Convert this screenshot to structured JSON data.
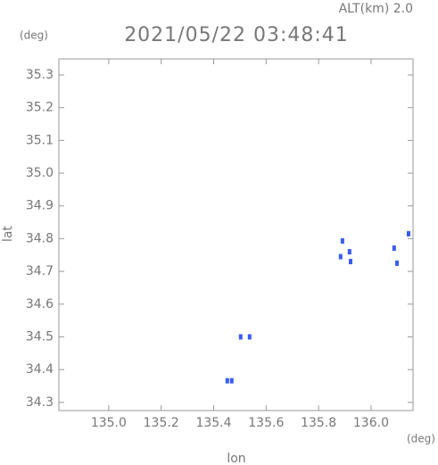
{
  "chart_data": {
    "type": "scatter",
    "title": "2021/05/22 03:48:41",
    "subtitle": "ALT(km) 2.0",
    "y_unit": "(deg)",
    "x_unit": "(deg)",
    "x_label": "lon",
    "y_label": "lat",
    "color": "#3a5cf0",
    "xlim": [
      134.81,
      136.16
    ],
    "ylim": [
      34.275,
      35.349
    ],
    "xticks": [
      {
        "value": 135.0,
        "label": "135.0"
      },
      135.2,
      135.4,
      135.6,
      135.8,
      {
        "value": 136.0,
        "label": "136.0"
      }
    ],
    "yticks": [
      34.3,
      34.4,
      34.5,
      34.6,
      34.7,
      34.8,
      34.9,
      {
        "value": 35.0,
        "label": "35.0"
      },
      35.1,
      35.2,
      35.3
    ],
    "x": [
      136.143,
      136.099,
      136.088,
      135.918,
      135.891,
      135.922,
      135.884,
      135.503,
      135.537,
      135.452,
      135.469
    ],
    "values": [
      34.815,
      34.725,
      34.771,
      34.76,
      34.793,
      34.73,
      34.745,
      34.5,
      34.5,
      34.366,
      34.366
    ]
  }
}
